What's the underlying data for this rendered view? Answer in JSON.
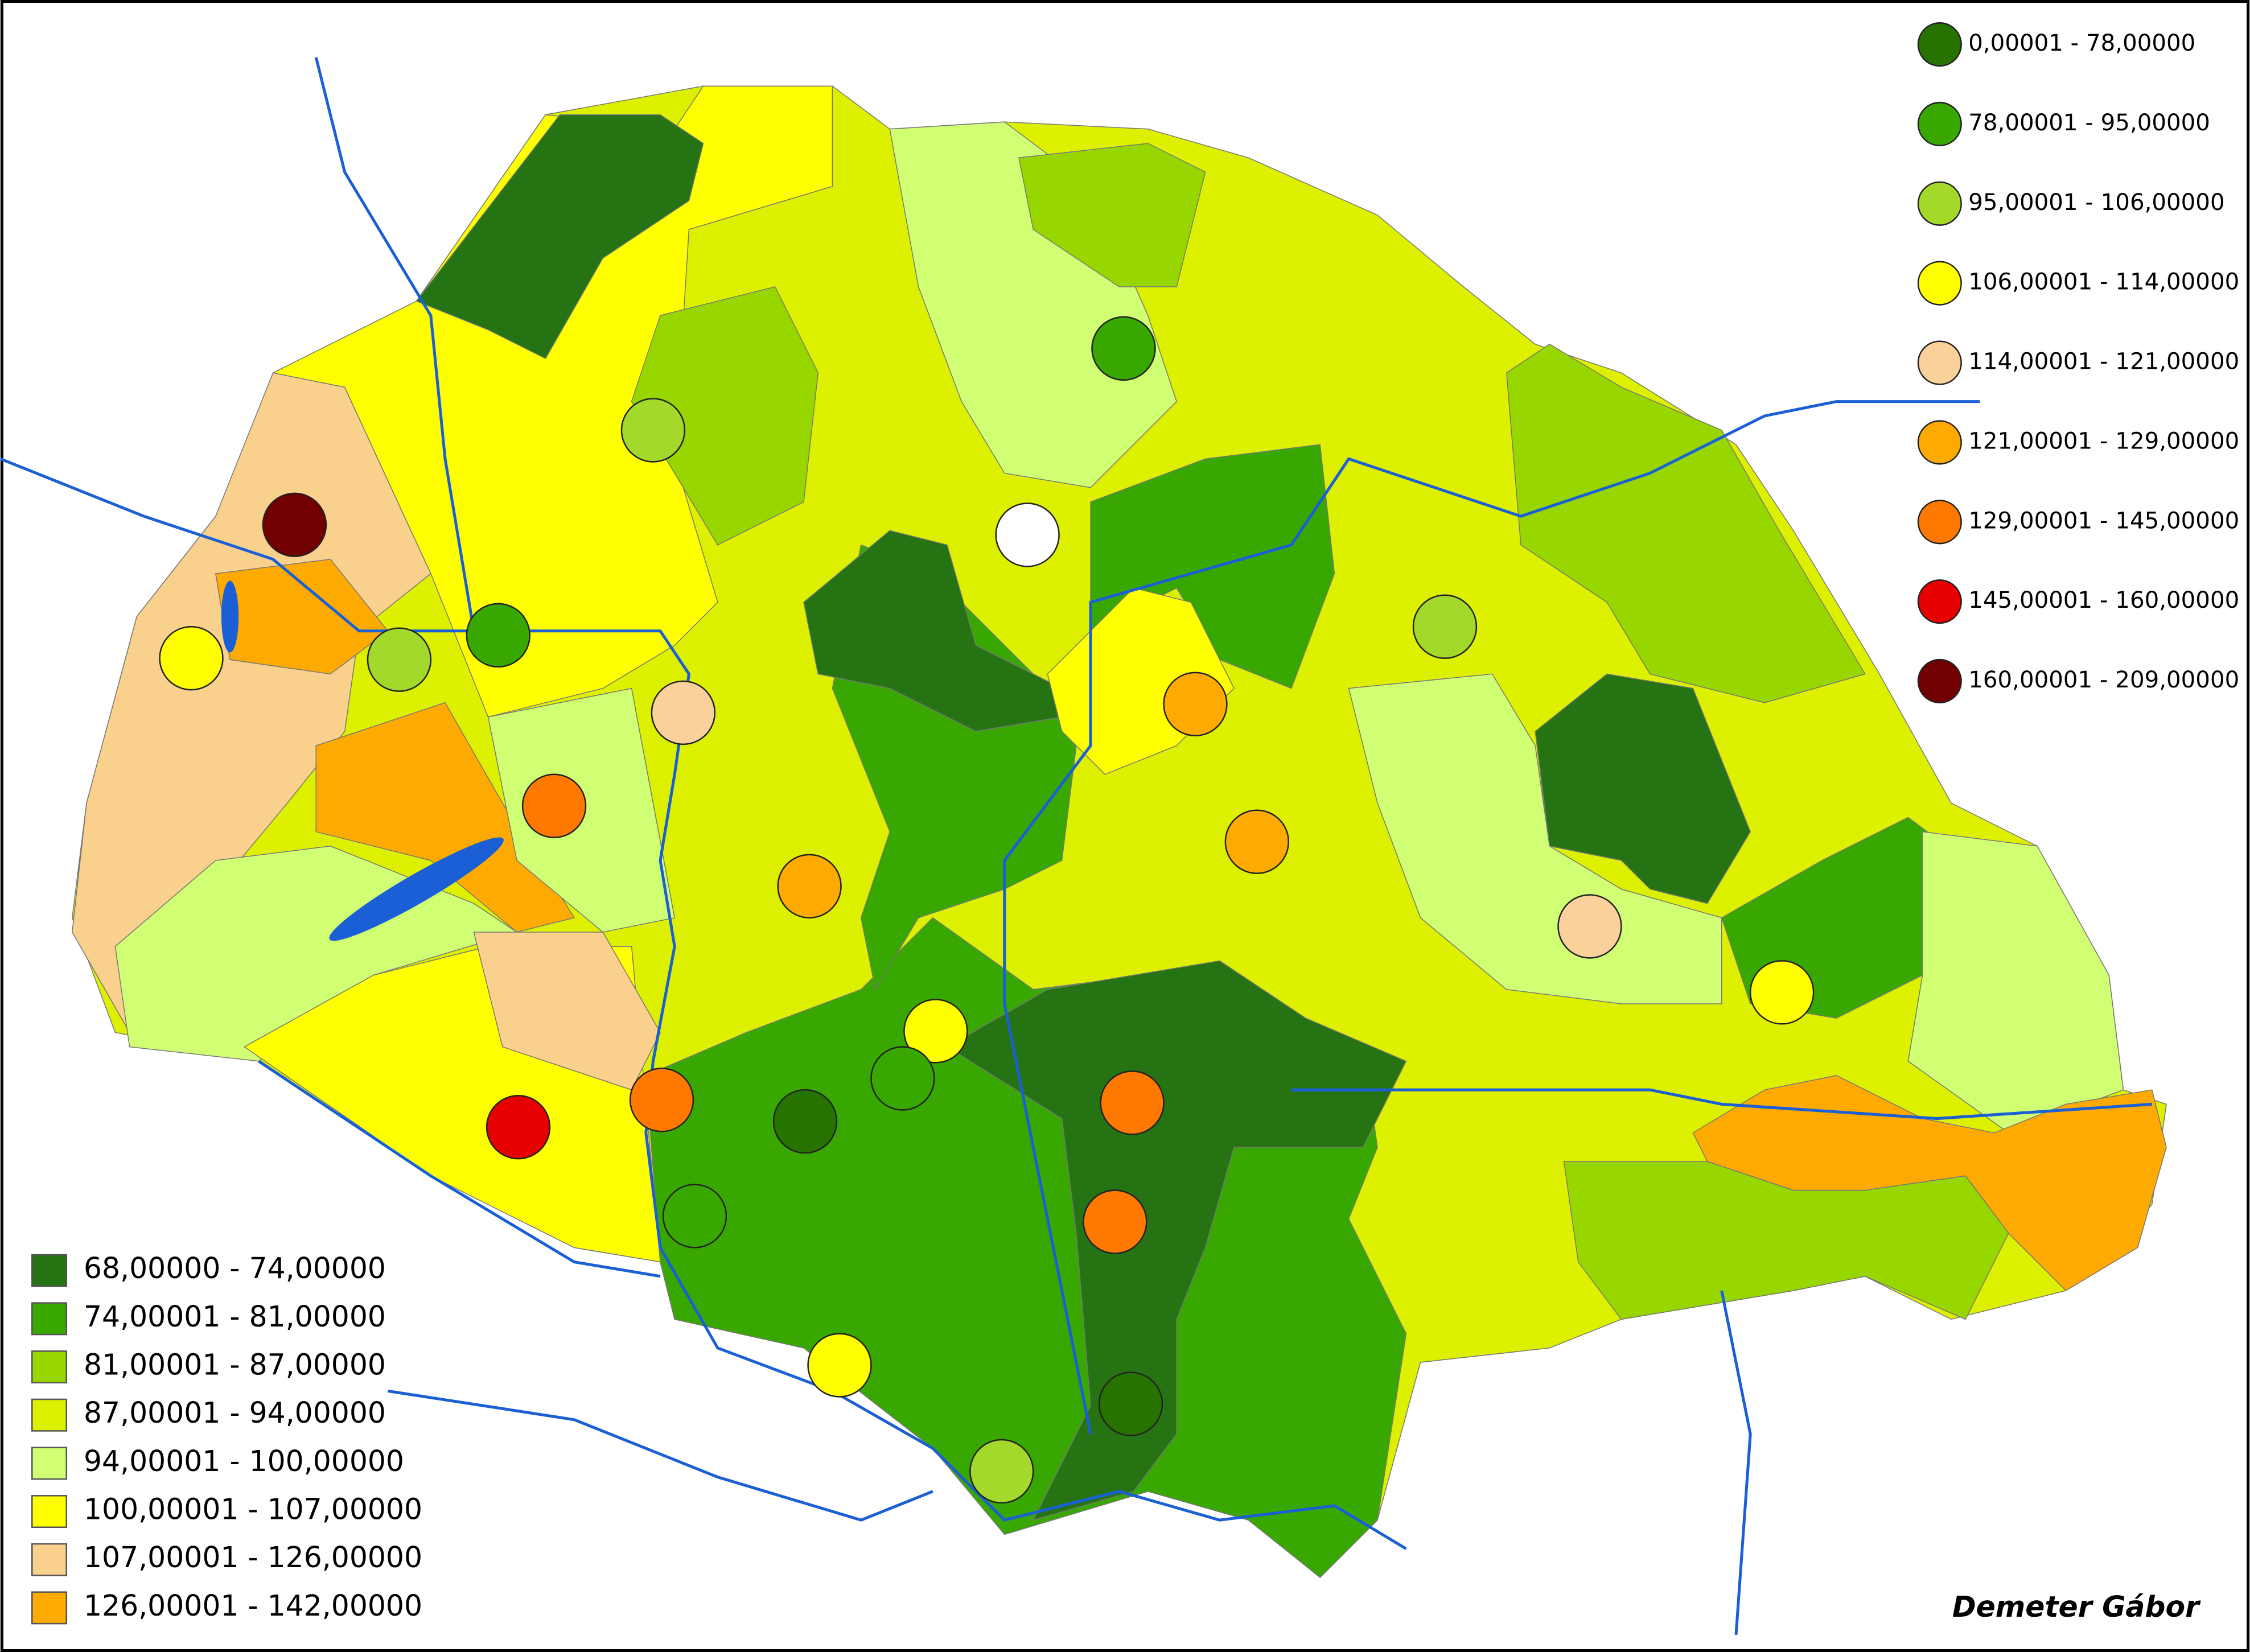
{
  "author": "Demeter Gábor",
  "circle_legend": [
    {
      "label": "0,00001 - 78,00000",
      "color": "#267300"
    },
    {
      "label": "78,00001 - 95,00000",
      "color": "#38a800"
    },
    {
      "label": "95,00001 - 106,00000",
      "color": "#a3d92b"
    },
    {
      "label": "106,00001 - 114,00000",
      "color": "#ffff00"
    },
    {
      "label": "114,00001 - 121,00000",
      "color": "#fad19a"
    },
    {
      "label": "121,00001 - 129,00000",
      "color": "#ffaa00"
    },
    {
      "label": "129,00001 - 145,00000",
      "color": "#ff7800"
    },
    {
      "label": "145,00001 - 160,00000",
      "color": "#e60000"
    },
    {
      "label": "160,00001 - 209,00000",
      "color": "#730000"
    }
  ],
  "region_legend": [
    {
      "label": "68,00000 - 74,00000",
      "color": "#267314"
    },
    {
      "label": "74,00001 - 81,00000",
      "color": "#38a800"
    },
    {
      "label": "81,00001 - 87,00000",
      "color": "#98d600"
    },
    {
      "label": "87,00001 - 94,00000",
      "color": "#dcf000"
    },
    {
      "label": "94,00001 - 100,00000",
      "color": "#d1ff73"
    },
    {
      "label": "100,00001 - 107,00000",
      "color": "#ffff00"
    },
    {
      "label": "107,00001 - 126,00000",
      "color": "#f9d08c"
    },
    {
      "label": "126,00001 - 142,00000",
      "color": "#ffaa00"
    }
  ]
}
